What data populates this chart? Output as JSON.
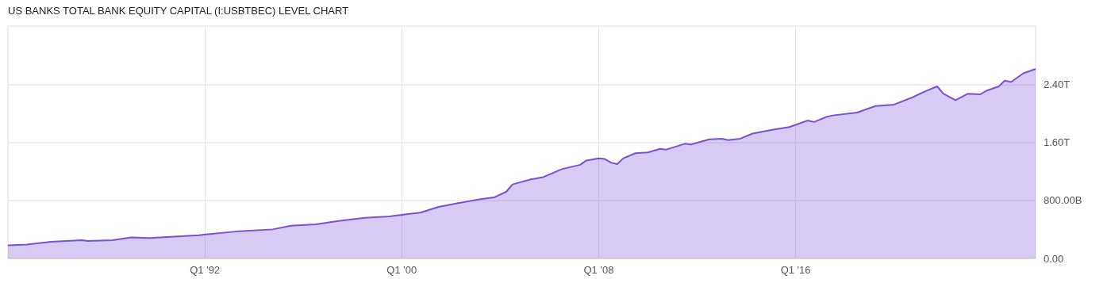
{
  "chart_data": {
    "type": "area",
    "title": "US BANKS TOTAL BANK EQUITY CAPITAL (I:USBTBEC) LEVEL CHART",
    "x": [
      "1984-01",
      "1984-10",
      "1985-10",
      "1987-01",
      "1987-04",
      "1988-04",
      "1989-01",
      "1989-10",
      "1990-10",
      "1991-10",
      "1993-04",
      "1994-10",
      "1995-07",
      "1996-07",
      "1997-07",
      "1998-07",
      "1999-07",
      "2000-01",
      "2000-10",
      "2001-07",
      "2002-04",
      "2003-04",
      "2003-10",
      "2004-04",
      "2004-07",
      "2005-04",
      "2005-10",
      "2006-07",
      "2007-04",
      "2007-07",
      "2008-01",
      "2008-04",
      "2008-07",
      "2008-10",
      "2009-01",
      "2009-07",
      "2010-01",
      "2010-07",
      "2010-10",
      "2011-07",
      "2011-10",
      "2012-07",
      "2013-01",
      "2013-04",
      "2013-10",
      "2014-04",
      "2015-01",
      "2015-10",
      "2016-07",
      "2016-10",
      "2017-04",
      "2017-07",
      "2018-07",
      "2019-04",
      "2020-01",
      "2020-10",
      "2021-04",
      "2021-10",
      "2022-01",
      "2022-07",
      "2023-01",
      "2023-07",
      "2023-10",
      "2024-04",
      "2024-07",
      "2024-10",
      "2025-04",
      "2025-10"
    ],
    "series": [
      {
        "color": "#7b4fd6",
        "values": [
          180000000000.0,
          190000000000.0,
          230000000000.0,
          250000000000.0,
          240000000000.0,
          250000000000.0,
          290000000000.0,
          280000000000.0,
          300000000000.0,
          320000000000.0,
          370000000000.0,
          400000000000.0,
          450000000000.0,
          470000000000.0,
          520000000000.0,
          560000000000.0,
          580000000000.0,
          600000000000.0,
          630000000000.0,
          710000000000.0,
          760000000000.0,
          820000000000.0,
          840000000000.0,
          920000000000.0,
          1020000000000.0,
          1090000000000.0,
          1120000000000.0,
          1230000000000.0,
          1290000000000.0,
          1350000000000.0,
          1380000000000.0,
          1370000000000.0,
          1320000000000.0,
          1300000000000.0,
          1380000000000.0,
          1450000000000.0,
          1460000000000.0,
          1510000000000.0,
          1500000000000.0,
          1580000000000.0,
          1570000000000.0,
          1640000000000.0,
          1650000000000.0,
          1630000000000.0,
          1650000000000.0,
          1720000000000.0,
          1770000000000.0,
          1810000000000.0,
          1900000000000.0,
          1880000000000.0,
          1950000000000.0,
          1970000000000.0,
          2010000000000.0,
          2100000000000.0,
          2120000000000.0,
          2220000000000.0,
          2300000000000.0,
          2370000000000.0,
          2270000000000.0,
          2180000000000.0,
          2270000000000.0,
          2260000000000.0,
          2310000000000.0,
          2370000000000.0,
          2450000000000.0,
          2430000000000.0,
          2550000000000.0,
          2610000000000.0
        ]
      }
    ],
    "xlim": [
      "1984-01",
      "2025-10"
    ],
    "xticks": [
      {
        "value": "1992-01",
        "label": "Q1 '92"
      },
      {
        "value": "2000-01",
        "label": "Q1 '00"
      },
      {
        "value": "2008-01",
        "label": "Q1 '08"
      },
      {
        "value": "2016-01",
        "label": "Q1 '16"
      }
    ],
    "ylim": [
      0,
      3200000000000.0
    ],
    "yticks": [
      {
        "value": 0,
        "label": "0.00"
      },
      {
        "value": 800000000000.0,
        "label": "800.00B"
      },
      {
        "value": 1600000000000.0,
        "label": "1.60T"
      },
      {
        "value": 2400000000000.0,
        "label": "2.40T"
      }
    ],
    "grid": true,
    "marker": "none",
    "line_style": "solid"
  }
}
